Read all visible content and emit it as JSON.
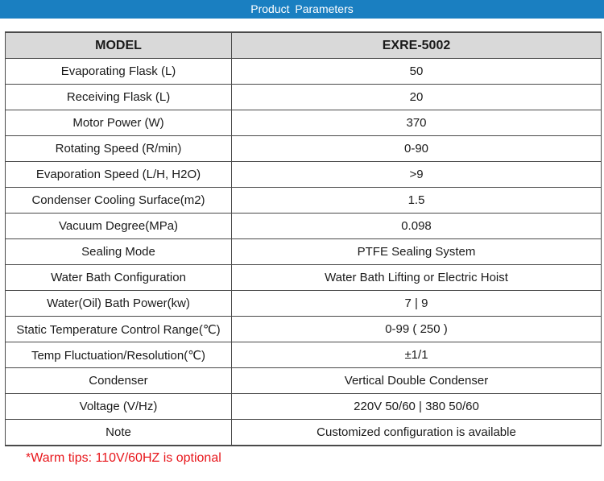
{
  "banner": {
    "title": "Product Parameters"
  },
  "table": {
    "header": {
      "label": "MODEL",
      "value": "EXRE-5002"
    },
    "rows": [
      {
        "label": "Evaporating Flask (L)",
        "value": "50"
      },
      {
        "label": "Receiving Flask (L)",
        "value": "20"
      },
      {
        "label": "Motor Power (W)",
        "value": "370"
      },
      {
        "label": "Rotating Speed (R/min)",
        "value": "0-90"
      },
      {
        "label": "Evaporation Speed (L/H, H2O)",
        "value": ">9"
      },
      {
        "label": "Condenser Cooling Surface(m2)",
        "value": "1.5"
      },
      {
        "label": "Vacuum Degree(MPa)",
        "value": "0.098"
      },
      {
        "label": "Sealing Mode",
        "value": "PTFE Sealing System"
      },
      {
        "label": "Water Bath Configuration",
        "value": "Water Bath Lifting or Electric Hoist"
      },
      {
        "label": "Water(Oil) Bath Power(kw)",
        "value": "7 | 9"
      },
      {
        "label": "Static Temperature Control Range(℃)",
        "value": "0-99 ( 250 )"
      },
      {
        "label": "Temp Fluctuation/Resolution(℃)",
        "value": "±1/1"
      },
      {
        "label": "Condenser",
        "value": "Vertical Double Condenser"
      },
      {
        "label": "Voltage (V/Hz)",
        "value": "220V 50/60 | 380 50/60"
      },
      {
        "label": "Note",
        "value": "Customized configuration is available"
      }
    ]
  },
  "footer": {
    "tip": "*Warm tips: 110V/60HZ is optional"
  }
}
